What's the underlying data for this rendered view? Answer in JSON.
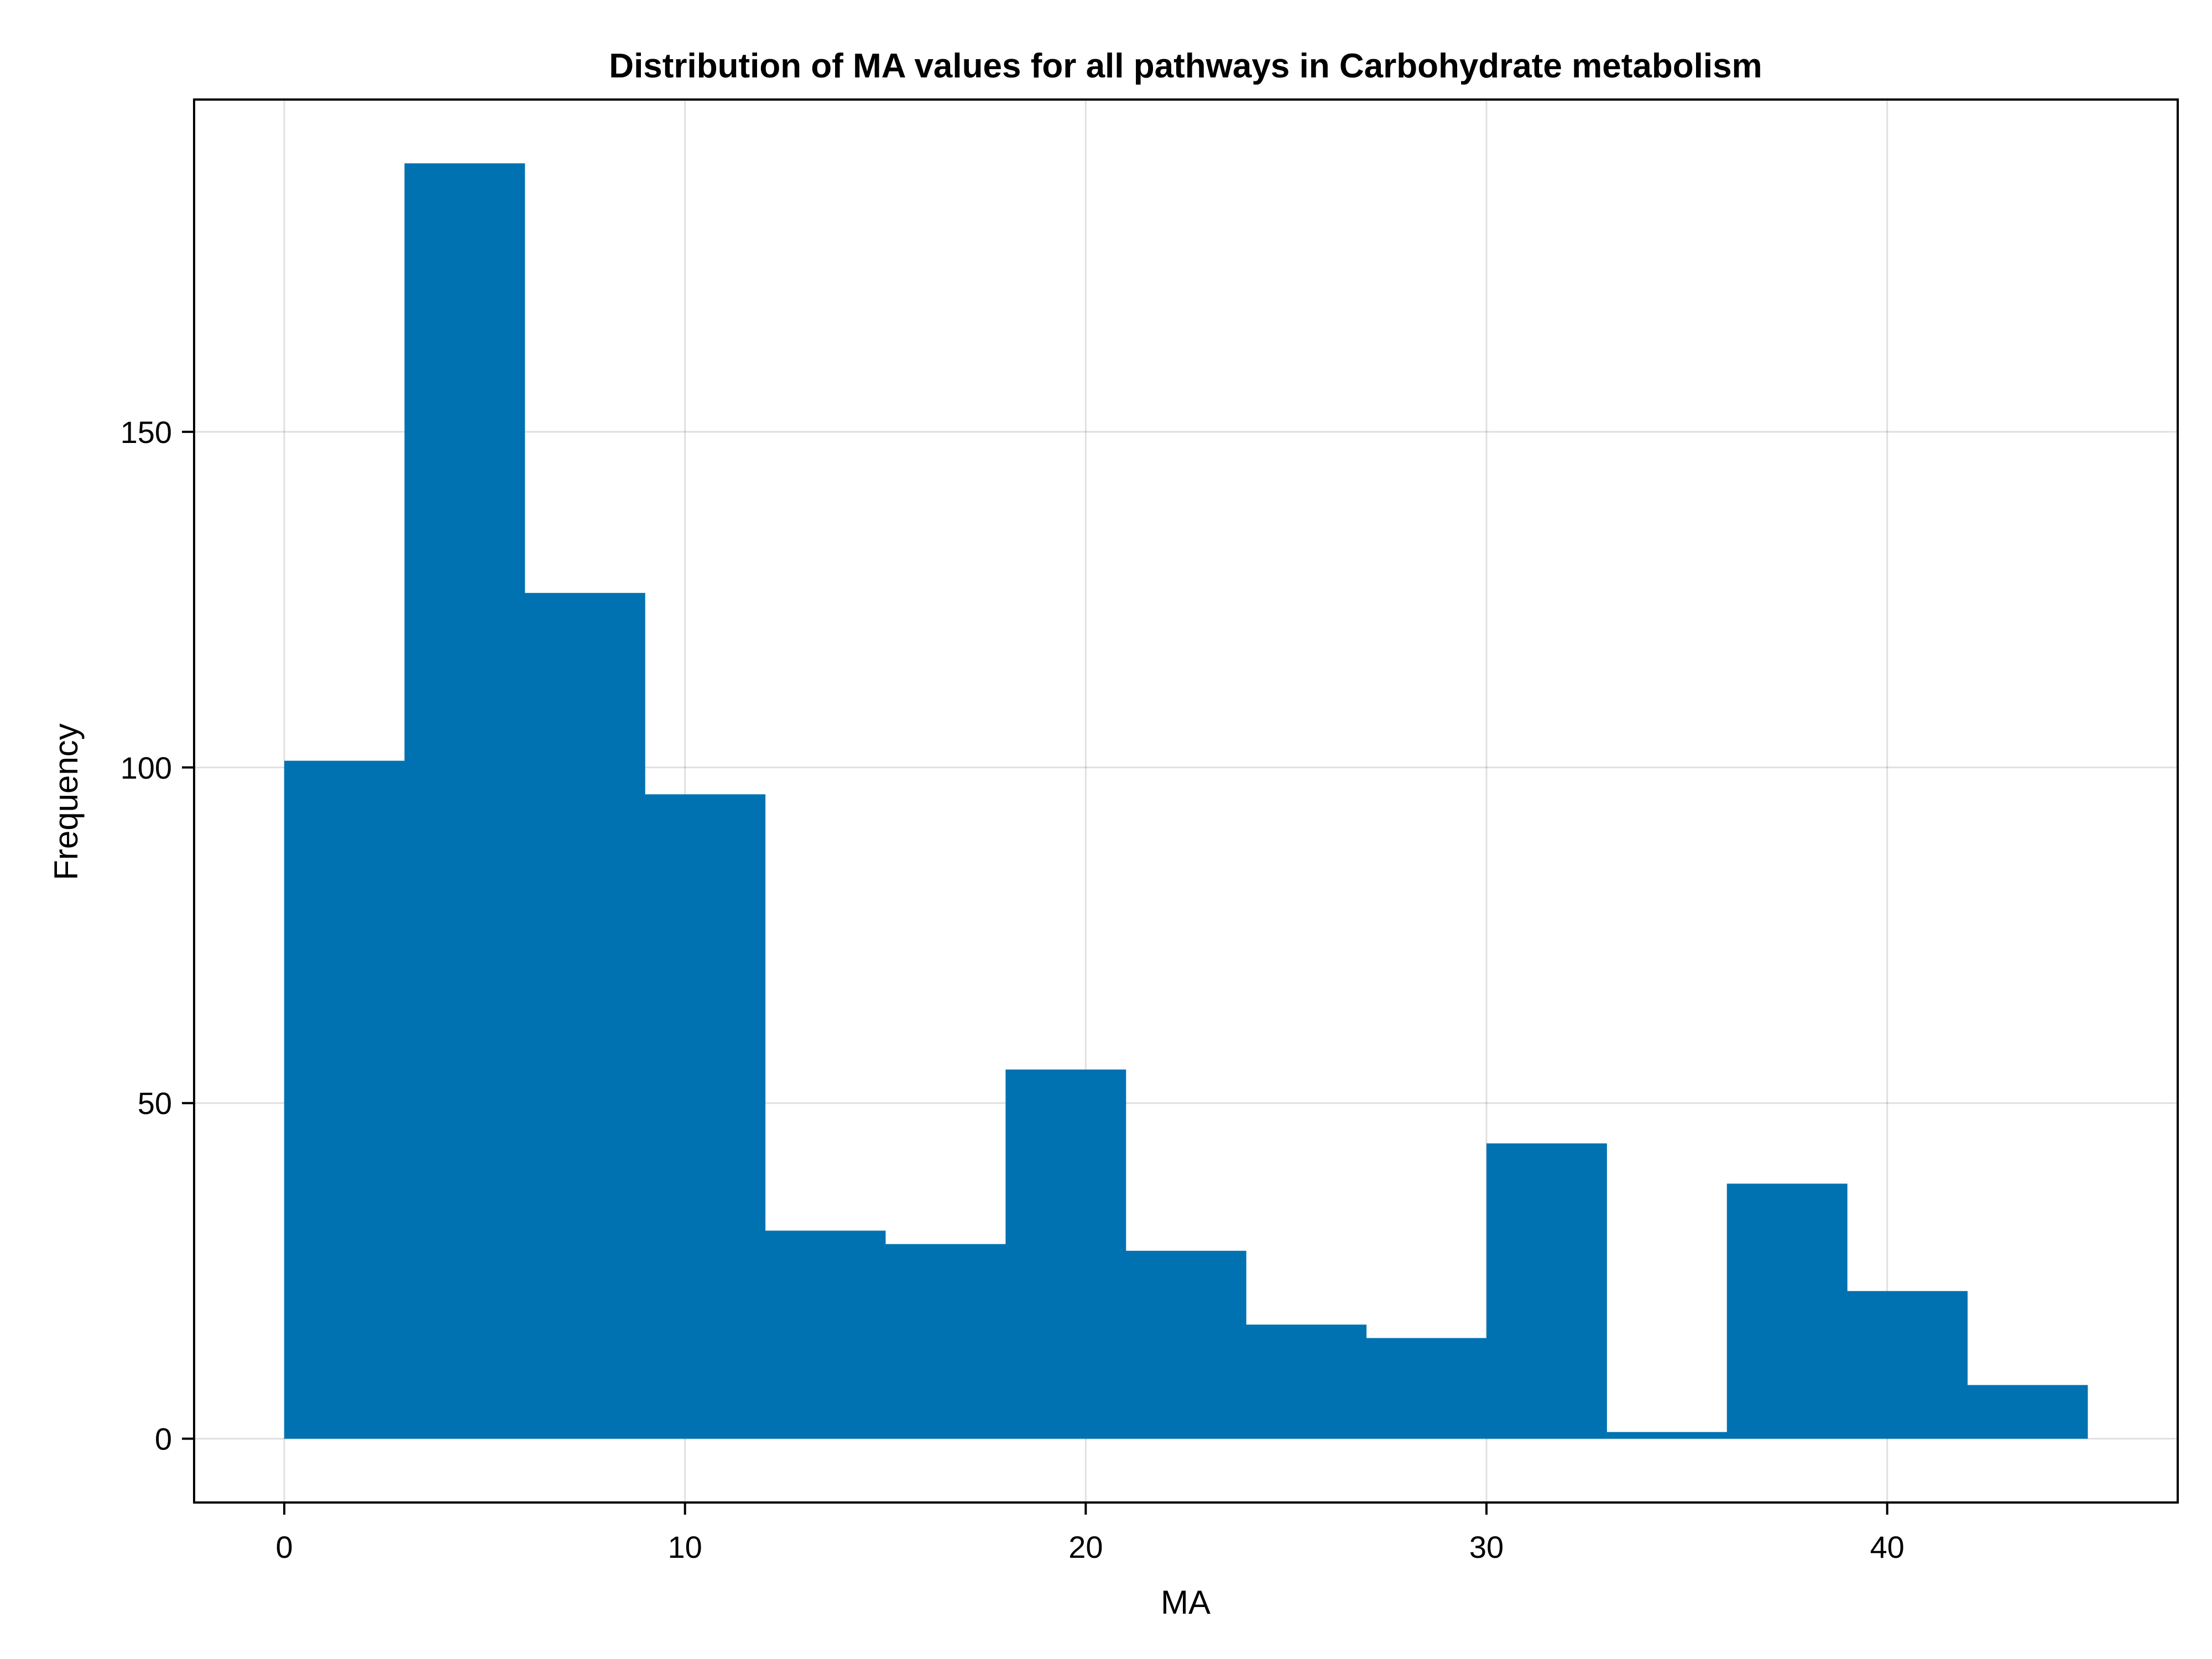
{
  "chart_data": {
    "type": "bar",
    "title": "Distribution of MA values for all pathways in Carbohydrate metabolism",
    "xlabel": "MA",
    "ylabel": "Frequency",
    "xlim": [
      -2.25,
      47.25
    ],
    "ylim": [
      -9.5,
      199.5
    ],
    "xticks": [
      0,
      10,
      20,
      30,
      40
    ],
    "yticks": [
      0,
      50,
      100,
      150
    ],
    "grid": true,
    "legend": "none",
    "bar_color": "#0072b2",
    "bins": [
      {
        "x0": 0,
        "x1": 3,
        "count": 101
      },
      {
        "x0": 3,
        "x1": 6,
        "count": 190
      },
      {
        "x0": 6,
        "x1": 9,
        "count": 126
      },
      {
        "x0": 9,
        "x1": 12,
        "count": 96
      },
      {
        "x0": 12,
        "x1": 15,
        "count": 31
      },
      {
        "x0": 15,
        "x1": 18,
        "count": 29
      },
      {
        "x0": 18,
        "x1": 21,
        "count": 55
      },
      {
        "x0": 21,
        "x1": 24,
        "count": 28
      },
      {
        "x0": 24,
        "x1": 27,
        "count": 17
      },
      {
        "x0": 27,
        "x1": 30,
        "count": 15
      },
      {
        "x0": 30,
        "x1": 33,
        "count": 44
      },
      {
        "x0": 33,
        "x1": 36,
        "count": 1
      },
      {
        "x0": 36,
        "x1": 39,
        "count": 38
      },
      {
        "x0": 39,
        "x1": 42,
        "count": 22
      },
      {
        "x0": 42,
        "x1": 45,
        "count": 8
      }
    ]
  }
}
